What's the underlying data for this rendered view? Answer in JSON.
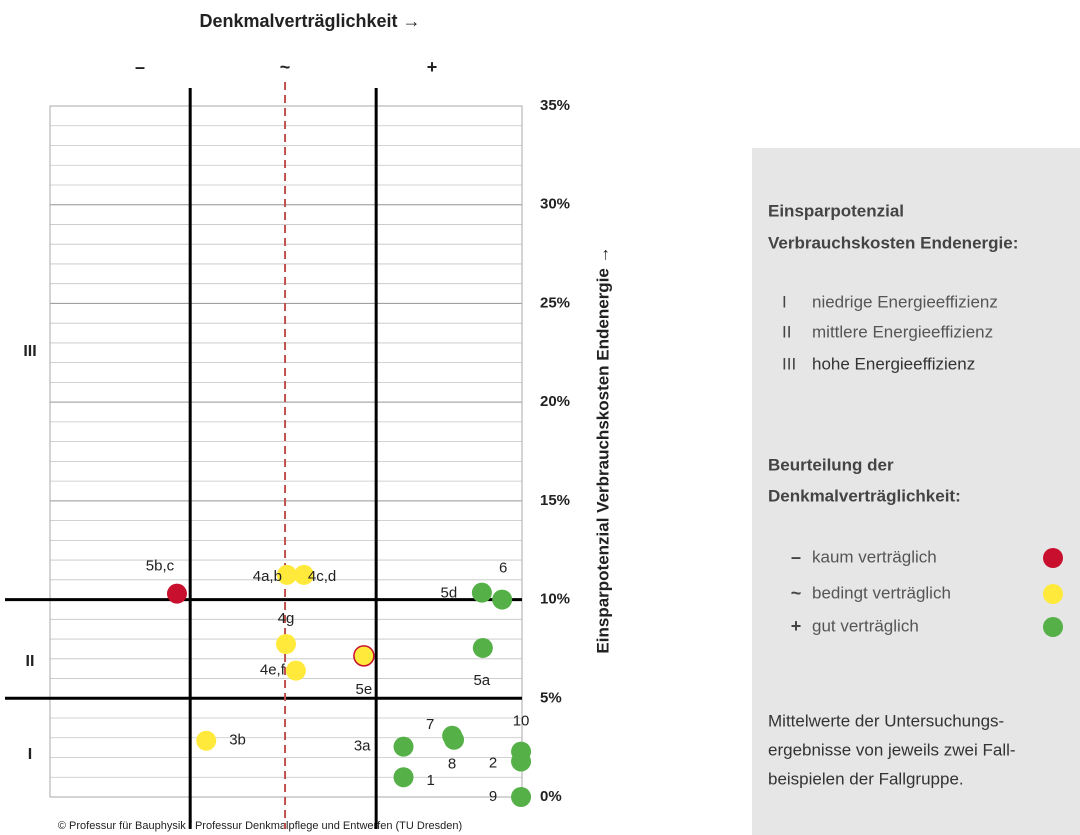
{
  "chart_data": {
    "type": "scatter",
    "title": "Denkmalverträglichkeit →",
    "ylabel": "Einsparpotenzial Verbrauchskosten Endenergie →",
    "categories": [
      "–",
      "~",
      "+"
    ],
    "region_labels": [
      "III",
      "II",
      "I"
    ],
    "xlim": [
      0,
      100
    ],
    "ylim": [
      0,
      35
    ],
    "yticks": [
      {
        "value": 0,
        "label": "0%"
      },
      {
        "value": 5,
        "label": "5%"
      },
      {
        "value": 10,
        "label": "10%"
      },
      {
        "value": 15,
        "label": "15%"
      },
      {
        "value": 20,
        "label": "20%"
      },
      {
        "value": 25,
        "label": "25%"
      },
      {
        "value": 30,
        "label": "30%"
      },
      {
        "value": 35,
        "label": "35%"
      }
    ],
    "minor_ystep": 1,
    "grid": true,
    "xlines": [
      29.7,
      69.1
    ],
    "xdashed": 49.8,
    "ylines": [
      5,
      10
    ],
    "series": [
      {
        "name": "kaum verträglich",
        "symbol": "–",
        "color": "#c8102e",
        "labels": [
          "5b,c"
        ],
        "x": [
          26.9
        ],
        "values": [
          10.3
        ]
      },
      {
        "name": "bedingt verträglich",
        "symbol": "~",
        "color": "#ffe93b",
        "labels": [
          "4a,b",
          "4c,d",
          "4g",
          "4e,f",
          "5e",
          "3b"
        ],
        "x": [
          50.2,
          53.8,
          50.0,
          52.1,
          66.5,
          33.1
        ],
        "values": [
          11.25,
          11.25,
          7.75,
          6.4,
          7.15,
          2.85
        ],
        "edgecolors": [
          null,
          null,
          null,
          null,
          "#c8102e",
          null
        ]
      },
      {
        "name": "gut verträglich",
        "symbol": "+",
        "color": "#55b047",
        "labels": [
          "3a",
          "1",
          "7",
          "8",
          "2",
          "10",
          "9",
          "5d",
          "6",
          "5a"
        ],
        "x": [
          74.9,
          74.9,
          85.2,
          85.6,
          99.8,
          99.8,
          99.8,
          91.5,
          95.8,
          91.7
        ],
        "values": [
          2.55,
          1.0,
          3.1,
          2.9,
          1.8,
          2.3,
          0,
          10.35,
          10.0,
          7.55
        ]
      }
    ]
  },
  "legend_panel": {
    "heading1": [
      "Einsparpotenzial",
      "Verbrauchskosten Endenergie:"
    ],
    "efficiency": [
      {
        "symbol": "I",
        "label": "niedrige Energieeffizienz"
      },
      {
        "symbol": "II",
        "label": "mittlere Energieeffizienz"
      },
      {
        "symbol": "III",
        "label": "hohe Energieeffizienz"
      }
    ],
    "heading2": [
      "Beurteilung der",
      "Denkmalverträglichkeit:"
    ],
    "note": [
      "Mittelwerte der Untersuchungs-",
      "ergebnisse von jeweils zwei Fall-",
      "beispielen der Fallgruppe."
    ]
  },
  "footer": "© Professur für Bauphysik / Professur Denkmalpflege und Entwerfen (TU Dresden)"
}
